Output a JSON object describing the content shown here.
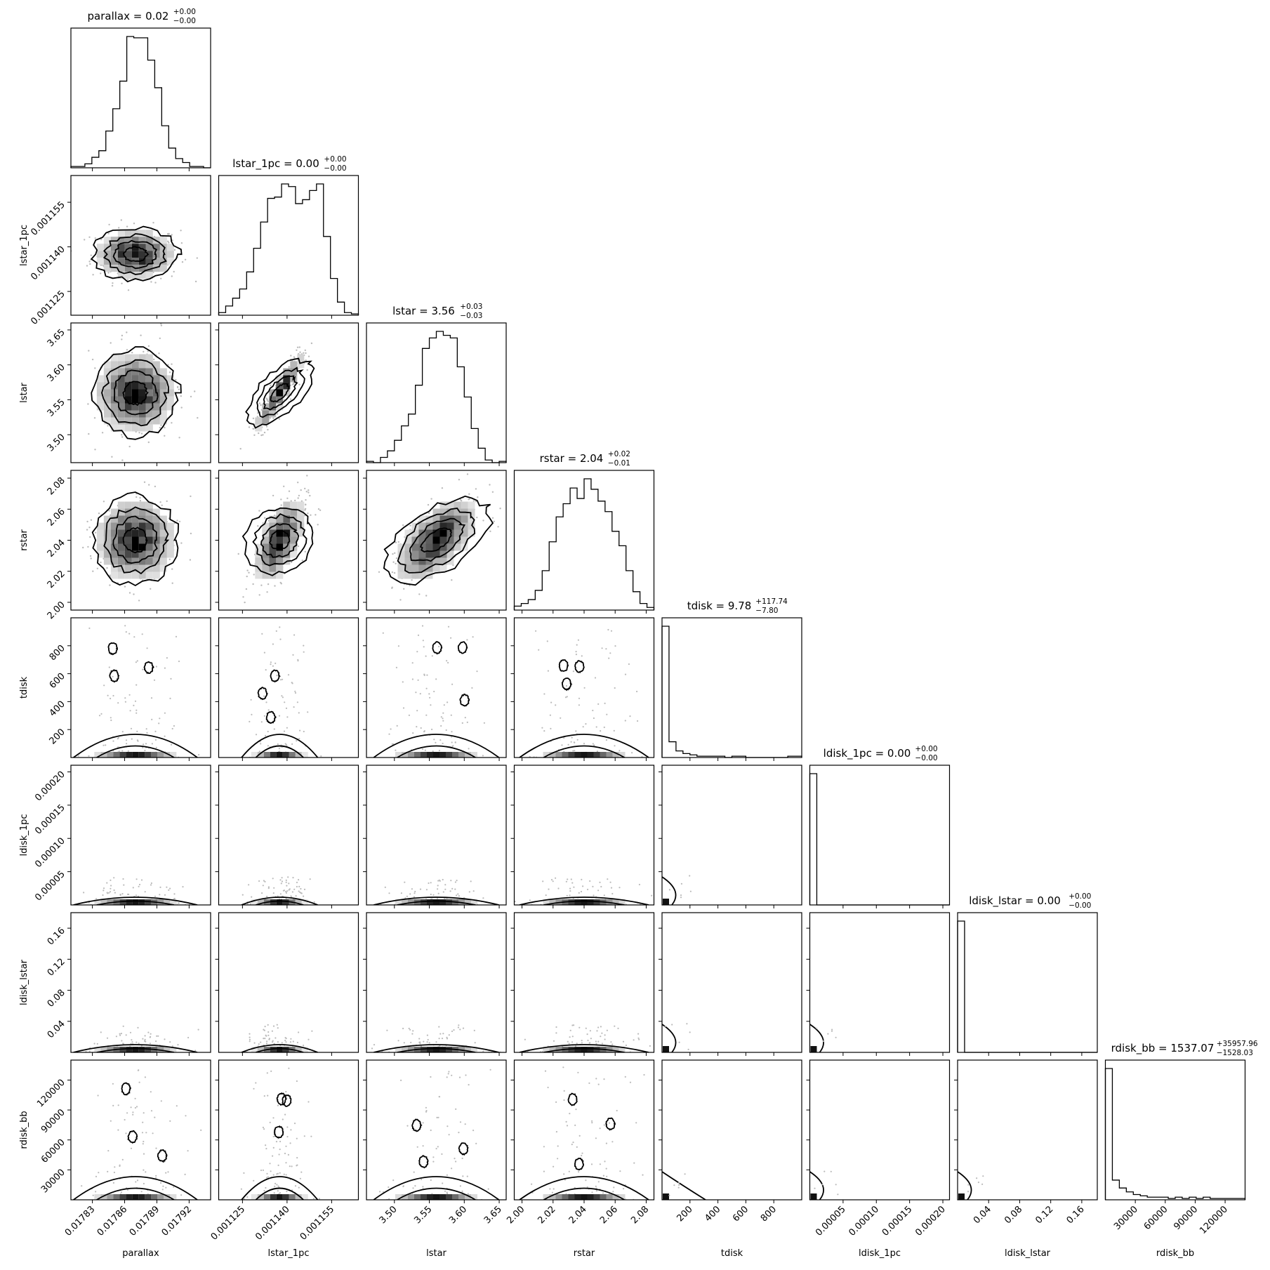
{
  "chart_data": {
    "type": "corner",
    "parameters": [
      {
        "name": "parallax",
        "label": "parallax",
        "title": "parallax = 0.02",
        "median": 0.01787,
        "sd": 1.8e-05,
        "sup": "+0.00",
        "sub": "−0.00",
        "range": [
          0.01781,
          0.01794
        ],
        "ticks": [
          0.01783,
          0.01786,
          0.01789,
          0.01792
        ],
        "tick_labels": [
          "0.01783",
          "0.01786",
          "0.01789",
          "0.01792"
        ]
      },
      {
        "name": "lstar_1pc",
        "label": "lstar_1pc",
        "title": "lstar_1pc = 0.00",
        "median": 0.0011375,
        "sd": 4e-06,
        "sup": "+0.00",
        "sub": "−0.00",
        "range": [
          0.001117,
          0.001164
        ],
        "ticks": [
          0.001125,
          0.00114,
          0.001155
        ],
        "tick_labels": [
          "0.001125",
          "0.001140",
          "0.001155"
        ]
      },
      {
        "name": "lstar",
        "label": "lstar",
        "title": "lstar = 3.56",
        "median": 3.56,
        "sd": 0.028,
        "sup": "+0.03",
        "sub": "−0.03",
        "range": [
          3.46,
          3.66
        ],
        "ticks": [
          3.5,
          3.55,
          3.6,
          3.65
        ],
        "tick_labels": [
          "3.50",
          "3.55",
          "3.60",
          "3.65"
        ]
      },
      {
        "name": "rstar",
        "label": "rstar",
        "title": "rstar = 2.04",
        "median": 2.04,
        "sd": 0.013,
        "sup": "+0.02",
        "sub": "−0.01",
        "range": [
          1.995,
          2.085
        ],
        "ticks": [
          2.0,
          2.02,
          2.04,
          2.06,
          2.08
        ],
        "tick_labels": [
          "2.00",
          "2.02",
          "2.04",
          "2.06",
          "2.08"
        ]
      },
      {
        "name": "tdisk",
        "label": "tdisk",
        "title": "tdisk = 9.78",
        "median": 9.78,
        "sd": 0,
        "sup": "+117.74",
        "sub": "−7.80",
        "range": [
          0,
          1000
        ],
        "ticks": [
          200,
          400,
          600,
          800
        ],
        "tick_labels": [
          "200",
          "400",
          "600",
          "800"
        ]
      },
      {
        "name": "ldisk_1pc",
        "label": "ldisk_1pc",
        "title": "ldisk_1pc = 0.00",
        "median": 0.0,
        "sd": 0,
        "sup": "+0.00",
        "sub": "−0.00",
        "range": [
          0,
          0.00021
        ],
        "ticks": [
          5e-05,
          0.0001,
          0.00015,
          0.0002
        ],
        "tick_labels": [
          "0.00005",
          "0.00010",
          "0.00015",
          "0.00020"
        ]
      },
      {
        "name": "ldisk_lstar",
        "label": "ldisk_lstar",
        "title": "ldisk_lstar = 0.00",
        "median": 0.0,
        "sd": 0,
        "sup": "+0.00",
        "sub": "−0.00",
        "range": [
          0,
          0.18
        ],
        "ticks": [
          0.04,
          0.08,
          0.12,
          0.16
        ],
        "tick_labels": [
          "0.04",
          "0.08",
          "0.12",
          "0.16"
        ]
      },
      {
        "name": "rdisk_bb",
        "label": "rdisk_bb",
        "title": "rdisk_bb = 1537.07",
        "median": 1537.07,
        "sd": 0,
        "sup": "+35957.96",
        "sub": "−1528.03",
        "range": [
          0,
          140000
        ],
        "ticks": [
          30000,
          60000,
          90000,
          120000
        ],
        "tick_labels": [
          "30000",
          "60000",
          "90000",
          "120000"
        ]
      }
    ],
    "histograms": [
      [
        0.01,
        0.01,
        0.03,
        0.08,
        0.13,
        0.28,
        0.45,
        0.66,
        1.0,
        0.99,
        0.99,
        0.82,
        0.61,
        0.32,
        0.15,
        0.07,
        0.04,
        0.01,
        0.01,
        0.0
      ],
      [
        0.02,
        0.07,
        0.13,
        0.2,
        0.33,
        0.51,
        0.71,
        0.89,
        0.9,
        1.0,
        0.98,
        0.85,
        0.88,
        0.95,
        1.0,
        0.6,
        0.28,
        0.1,
        0.02,
        0.01
      ],
      [
        0.01,
        0.0,
        0.04,
        0.09,
        0.17,
        0.28,
        0.37,
        0.59,
        0.87,
        0.95,
        1.0,
        0.97,
        0.95,
        0.73,
        0.5,
        0.26,
        0.11,
        0.02,
        0.0,
        0.01
      ],
      [
        0.03,
        0.05,
        0.08,
        0.15,
        0.3,
        0.52,
        0.71,
        0.81,
        0.93,
        0.85,
        1.0,
        0.92,
        0.83,
        0.75,
        0.6,
        0.49,
        0.3,
        0.14,
        0.05,
        0.02
      ],
      [
        1.0,
        0.12,
        0.05,
        0.03,
        0.02,
        0.01,
        0.01,
        0.01,
        0.01,
        0.0,
        0.01,
        0.01,
        0.0,
        0.0,
        0.0,
        0.0,
        0.0,
        0.0,
        0.01,
        0.01
      ],
      [
        1.0,
        0.0,
        0.0,
        0.0,
        0.0,
        0.0,
        0.0,
        0.0,
        0.0,
        0.0,
        0.0,
        0.0,
        0.0,
        0.0,
        0.0,
        0.0,
        0.0,
        0.0,
        0.0,
        0.0
      ],
      [
        1.0,
        0.0,
        0.0,
        0.0,
        0.0,
        0.0,
        0.0,
        0.0,
        0.0,
        0.0,
        0.0,
        0.0,
        0.0,
        0.0,
        0.0,
        0.0,
        0.0,
        0.0,
        0.0,
        0.0
      ],
      [
        1.0,
        0.15,
        0.09,
        0.06,
        0.04,
        0.03,
        0.02,
        0.02,
        0.02,
        0.01,
        0.02,
        0.01,
        0.02,
        0.01,
        0.02,
        0.01,
        0.01,
        0.01,
        0.01,
        0.01
      ]
    ],
    "correlations": {
      "2,1": 0.92,
      "3,1": 0.55,
      "3,2": 0.6
    }
  }
}
